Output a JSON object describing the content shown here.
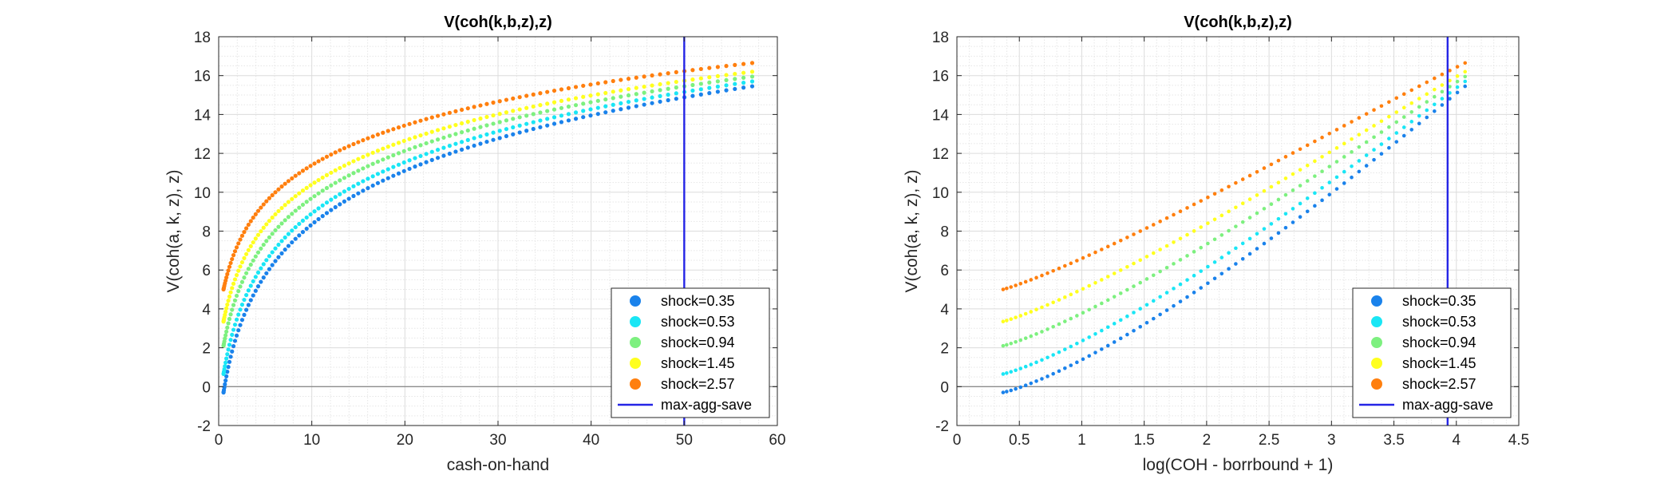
{
  "chart_data": [
    {
      "type": "scatter",
      "title": "V(coh(k,b,z),z)",
      "xlabel": "cash-on-hand",
      "ylabel": "V(coh(a, k, z), z)",
      "xlim": [
        0,
        60
      ],
      "ylim": [
        -2,
        18
      ],
      "xticks": [
        0,
        10,
        20,
        30,
        40,
        50,
        60
      ],
      "xtick_labels": [
        "0",
        "10",
        "20",
        "30",
        "40",
        "50",
        "60"
      ],
      "yticks": [
        -2,
        0,
        2,
        4,
        6,
        8,
        10,
        12,
        14,
        16,
        18
      ],
      "ytick_labels": [
        "-2",
        "0",
        "2",
        "4",
        "6",
        "8",
        "10",
        "12",
        "14",
        "16",
        "18"
      ],
      "grid": true,
      "minor_grid": true,
      "legend_position": "bottom-right",
      "vline": {
        "x": 50.0,
        "name": "max-agg-save",
        "color": "#2525e6"
      },
      "series": [
        {
          "name": "shock=0.35",
          "color": "#1a82eb",
          "x_range": [
            0.52,
            57.3
          ],
          "y_start": -0.3,
          "y_end": 15.45
        },
        {
          "name": "shock=0.53",
          "color": "#1ae6f5",
          "x_range": [
            0.52,
            57.3
          ],
          "y_start": 0.65,
          "y_end": 15.7
        },
        {
          "name": "shock=0.94",
          "color": "#7df07f",
          "x_range": [
            0.52,
            57.3
          ],
          "y_start": 2.1,
          "y_end": 15.95
        },
        {
          "name": "shock=1.45",
          "color": "#ffff1e",
          "x_range": [
            0.52,
            57.3
          ],
          "y_start": 3.35,
          "y_end": 16.2
        },
        {
          "name": "shock=2.57",
          "color": "#ff7f0e",
          "x_range": [
            0.52,
            57.3
          ],
          "y_start": 5.0,
          "y_end": 16.65
        }
      ]
    },
    {
      "type": "scatter",
      "title": "V(coh(k,b,z),z)",
      "xlabel": "log(COH - borrbound + 1)",
      "ylabel": "V(coh(a, k, z), z)",
      "xlim": [
        0,
        4.5
      ],
      "ylim": [
        -2,
        18
      ],
      "xticks": [
        0,
        0.5,
        1,
        1.5,
        2,
        2.5,
        3,
        3.5,
        4,
        4.5
      ],
      "xtick_labels": [
        "0",
        "0.5",
        "1",
        "1.5",
        "2",
        "2.5",
        "3",
        "3.5",
        "4",
        "4.5"
      ],
      "yticks": [
        -2,
        0,
        2,
        4,
        6,
        8,
        10,
        12,
        14,
        16,
        18
      ],
      "ytick_labels": [
        "-2",
        "0",
        "2",
        "4",
        "6",
        "8",
        "10",
        "12",
        "14",
        "16",
        "18"
      ],
      "grid": true,
      "minor_grid": true,
      "legend_position": "bottom-right",
      "vline": {
        "x": 3.93,
        "name": "max-agg-save",
        "color": "#2525e6"
      },
      "series": [
        {
          "name": "shock=0.35",
          "color": "#1a82eb",
          "x_range": [
            0.37,
            4.07
          ],
          "y_start": -0.3,
          "y_end": 15.45
        },
        {
          "name": "shock=0.53",
          "color": "#1ae6f5",
          "x_range": [
            0.37,
            4.07
          ],
          "y_start": 0.65,
          "y_end": 15.7
        },
        {
          "name": "shock=0.94",
          "color": "#7df07f",
          "x_range": [
            0.37,
            4.07
          ],
          "y_start": 2.1,
          "y_end": 15.95
        },
        {
          "name": "shock=1.45",
          "color": "#ffff1e",
          "x_range": [
            0.37,
            4.07
          ],
          "y_start": 3.35,
          "y_end": 16.2
        },
        {
          "name": "shock=2.57",
          "color": "#ff7f0e",
          "x_range": [
            0.37,
            4.07
          ],
          "y_start": 5.0,
          "y_end": 16.65
        }
      ]
    }
  ]
}
